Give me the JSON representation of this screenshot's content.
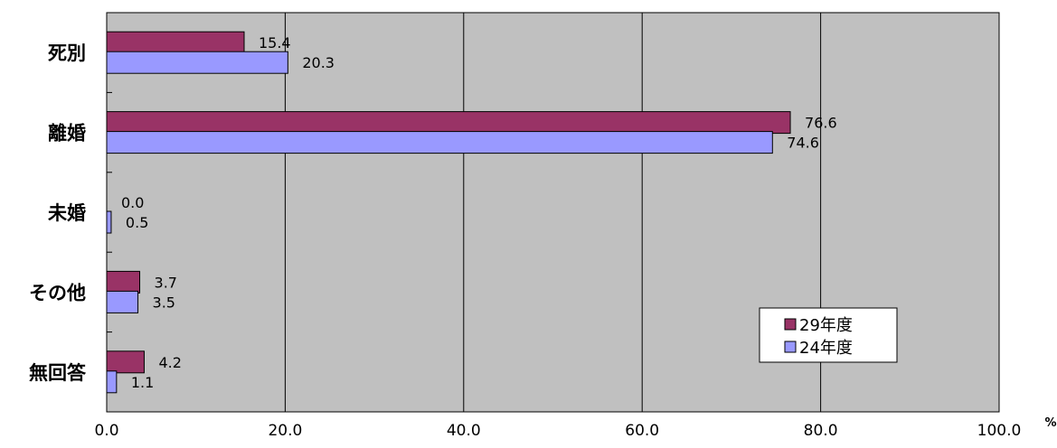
{
  "chart_data": {
    "type": "bar",
    "orientation": "horizontal",
    "categories": [
      "死別",
      "離婚",
      "未婚",
      "その他",
      "無回答"
    ],
    "series": [
      {
        "name": "29年度",
        "color": "#993366",
        "values": [
          15.4,
          76.6,
          0.0,
          3.7,
          4.2
        ]
      },
      {
        "name": "24年度",
        "color": "#9999FF",
        "values": [
          20.3,
          74.6,
          0.5,
          3.5,
          1.1
        ]
      }
    ],
    "xlim": [
      0,
      100
    ],
    "x_ticks": [
      0,
      20,
      40,
      60,
      80,
      100
    ],
    "x_tick_labels": [
      "0.0",
      "20.0",
      "40.0",
      "60.0",
      "80.0",
      "100.0"
    ],
    "x_unit": "%",
    "grid": true,
    "plot_background": "#C0C0C0",
    "legend_position": "bottom-right",
    "title": "",
    "xlabel": "",
    "ylabel": ""
  }
}
